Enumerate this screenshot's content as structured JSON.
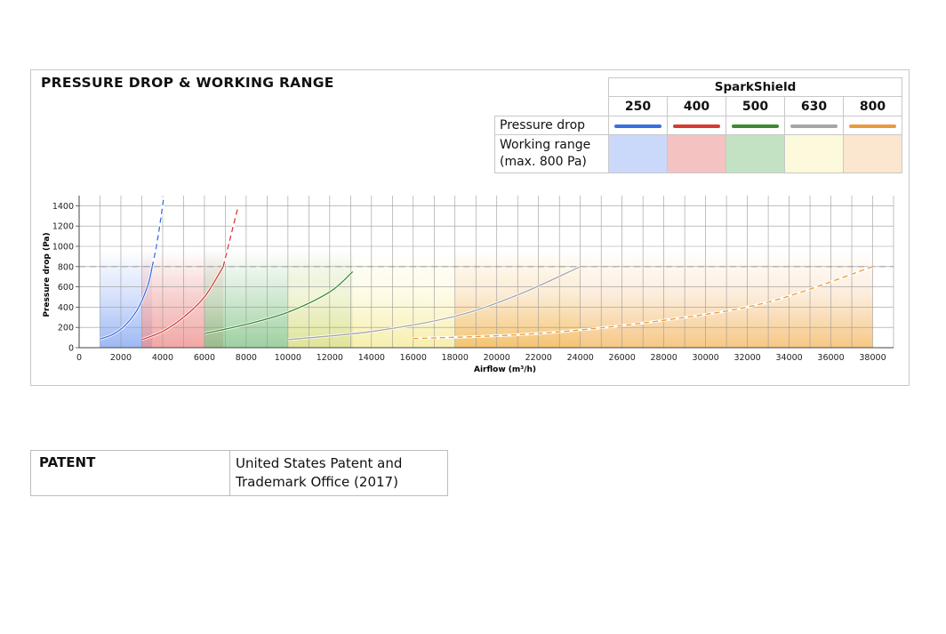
{
  "title": "PRESSURE DROP & WORKING RANGE",
  "legend": {
    "brand": "SparkShield",
    "sizes": [
      "250",
      "400",
      "500",
      "630",
      "800"
    ],
    "row_pressure": "Pressure drop",
    "row_working_1": "Working range",
    "row_working_2": "(max. 800 Pa)",
    "line_colors": [
      "#3b6fe0",
      "#d83a32",
      "#3a8b2e",
      "#a6a6a6",
      "#ea9a3a"
    ],
    "fill_colors": [
      "#cad8fa",
      "#f4c2c1",
      "#c3e2c4",
      "#fdf9dc",
      "#fbe6cf"
    ]
  },
  "patent": {
    "label": "PATENT",
    "value_line1": "United States Patent and",
    "value_line2": "Trademark Office (2017)"
  },
  "chart_data": {
    "type": "line",
    "xlabel": "Airflow (m³/h)",
    "ylabel": "Pressure drop (Pa)",
    "xlim": [
      0,
      39000
    ],
    "ylim": [
      0,
      1500
    ],
    "grid": true,
    "xticks": [
      0,
      2000,
      4000,
      6000,
      8000,
      10000,
      12000,
      14000,
      16000,
      18000,
      20000,
      22000,
      24000,
      26000,
      28000,
      30000,
      32000,
      34000,
      36000,
      38000
    ],
    "yticks": [
      0,
      200,
      400,
      600,
      800,
      1000,
      1200,
      1400
    ],
    "reference_line": 800,
    "series": [
      {
        "name": "250",
        "color": "#3b6fe0",
        "solid": [
          [
            1000,
            85
          ],
          [
            1600,
            130
          ],
          [
            2200,
            220
          ],
          [
            2800,
            380
          ],
          [
            3300,
            620
          ],
          [
            3500,
            800
          ]
        ],
        "dashed": [
          [
            3500,
            800
          ],
          [
            3700,
            1000
          ],
          [
            3900,
            1260
          ],
          [
            4050,
            1480
          ]
        ],
        "working_range": [
          1000,
          3500
        ]
      },
      {
        "name": "400",
        "color": "#d83a32",
        "solid": [
          [
            3000,
            80
          ],
          [
            4000,
            160
          ],
          [
            5000,
            300
          ],
          [
            6000,
            500
          ],
          [
            6900,
            800
          ]
        ],
        "dashed": [
          [
            6900,
            800
          ],
          [
            7200,
            1050
          ],
          [
            7600,
            1380
          ]
        ],
        "working_range": [
          3000,
          6900
        ]
      },
      {
        "name": "500",
        "color": "#3a8b2e",
        "solid": [
          [
            6000,
            140
          ],
          [
            8000,
            230
          ],
          [
            10000,
            350
          ],
          [
            12000,
            550
          ],
          [
            13100,
            750
          ]
        ],
        "working_range": [
          6000,
          13100
        ]
      },
      {
        "name": "630",
        "color": "#a6a6a6",
        "solid": [
          [
            10000,
            80
          ],
          [
            14000,
            160
          ],
          [
            18000,
            310
          ],
          [
            21000,
            520
          ],
          [
            24000,
            800
          ]
        ],
        "working_range": [
          10000,
          24000
        ]
      },
      {
        "name": "800",
        "color": "#ea9a3a",
        "dashed": [
          [
            16000,
            90
          ],
          [
            22000,
            140
          ],
          [
            28000,
            270
          ],
          [
            33000,
            450
          ],
          [
            38000,
            800
          ]
        ],
        "working_range": [
          18000,
          38000
        ]
      }
    ]
  }
}
